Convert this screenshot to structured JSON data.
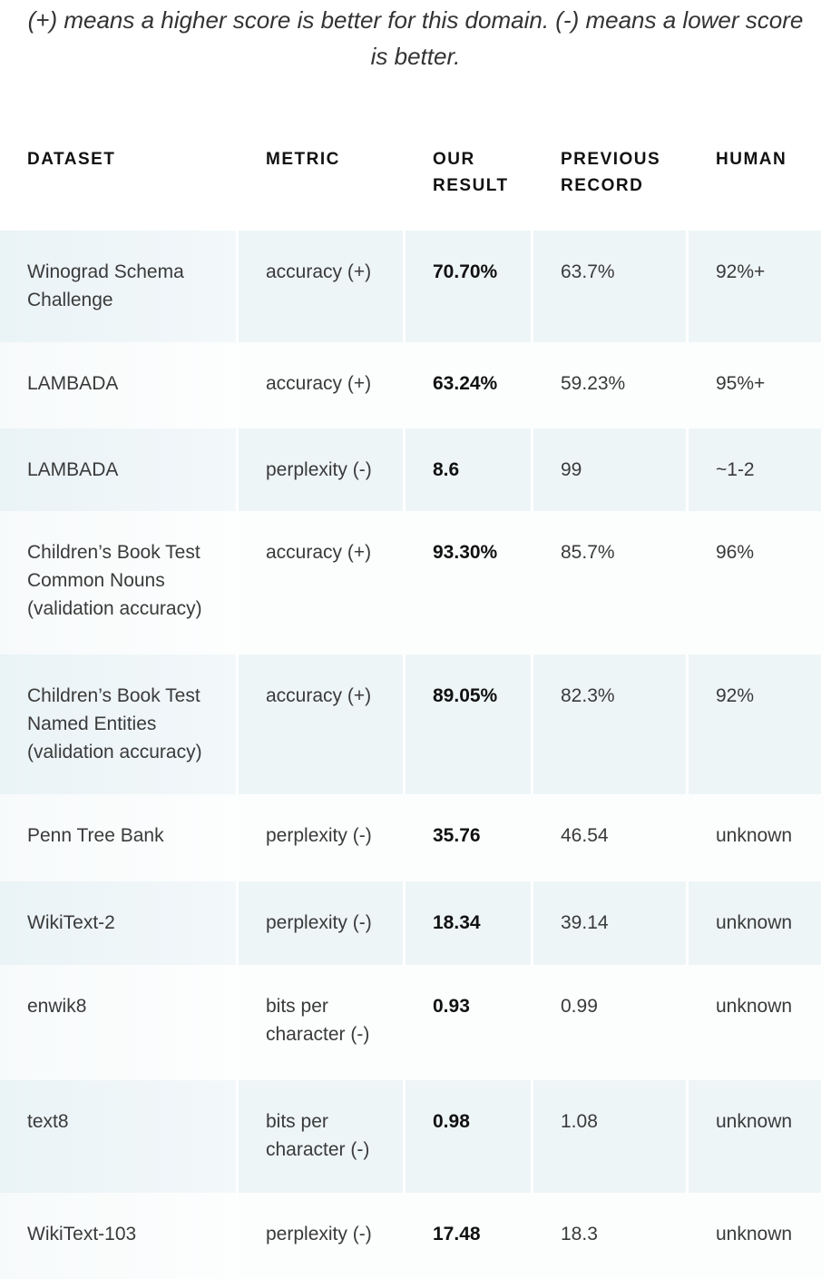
{
  "note": {
    "line1": "(+) means a higher score is better for this domain. (-) means a lower score",
    "line2": "is better."
  },
  "table": {
    "headers": {
      "dataset": "DATASET",
      "metric": "METRIC",
      "our_result_1": "OUR",
      "our_result_2": "RESULT",
      "previous_1": "PREVIOUS",
      "previous_2": "RECORD",
      "human": "HUMAN"
    },
    "rows": [
      {
        "dataset": "Winograd Schema Challenge",
        "metric": "accuracy (+)",
        "our_result": "70.70%",
        "previous": "63.7%",
        "human": "92%+"
      },
      {
        "dataset": "LAMBADA",
        "metric": "accuracy (+)",
        "our_result": "63.24%",
        "previous": "59.23%",
        "human": "95%+"
      },
      {
        "dataset": "LAMBADA",
        "metric": "perplexity (-)",
        "our_result": "8.6",
        "previous": "99",
        "human": "~1-2"
      },
      {
        "dataset": "Children’s Book Test Common Nouns (validation accuracy)",
        "metric": "accuracy (+)",
        "our_result": "93.30%",
        "previous": "85.7%",
        "human": "96%"
      },
      {
        "dataset": "Children’s Book Test Named Entities (validation accuracy)",
        "metric": "accuracy (+)",
        "our_result": "89.05%",
        "previous": "82.3%",
        "human": "92%"
      },
      {
        "dataset": "Penn Tree Bank",
        "metric": "perplexity (-)",
        "our_result": "35.76",
        "previous": "46.54",
        "human": "unknown"
      },
      {
        "dataset": "WikiText-2",
        "metric": "perplexity (-)",
        "our_result": "18.34",
        "previous": "39.14",
        "human": "unknown"
      },
      {
        "dataset": "enwik8",
        "metric": "bits per character (-)",
        "our_result": "0.93",
        "previous": "0.99",
        "human": "unknown"
      },
      {
        "dataset": "text8",
        "metric": "bits per character (-)",
        "our_result": "0.98",
        "previous": "1.08",
        "human": "unknown"
      },
      {
        "dataset": "WikiText-103",
        "metric": "perplexity (-)",
        "our_result": "17.48",
        "previous": "18.3",
        "human": "unknown"
      }
    ]
  }
}
